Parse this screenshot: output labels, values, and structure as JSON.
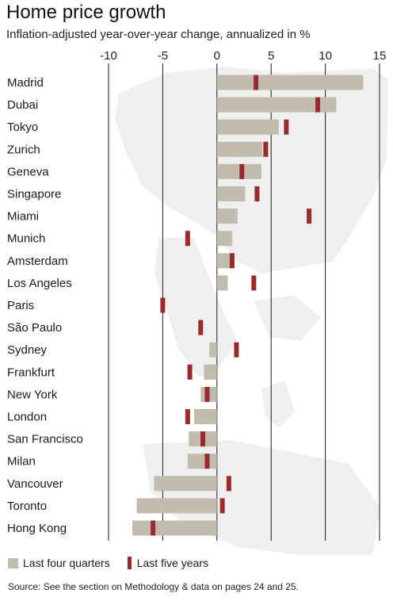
{
  "title": "Home price growth",
  "subtitle": "Inflation-adjusted year-over-year change, annualized in %",
  "legend": {
    "four_quarters": "Last four quarters",
    "five_years": "Last five years"
  },
  "source": "Source: See the section on Methodology & data on pages 24 and 25.",
  "colors": {
    "four_quarters": "#c2bcae",
    "five_years": "#9b2a2f",
    "gridline": "#1a1a1a",
    "map": "#efefef"
  },
  "chart_data": {
    "type": "bar",
    "orientation": "horizontal",
    "xlim": [
      -10,
      15
    ],
    "xticks": [
      "-10",
      "-5",
      "0",
      "5",
      "10",
      "15"
    ],
    "xtick_values": [
      -10,
      -5,
      0,
      5,
      10,
      15
    ],
    "grid": true,
    "legend_position": "bottom-left",
    "categories": [
      "Madrid",
      "Dubai",
      "Tokyo",
      "Zurich",
      "Geneva",
      "Singapore",
      "Miami",
      "Munich",
      "Amsterdam",
      "Los Angeles",
      "Paris",
      "São Paulo",
      "Sydney",
      "Frankfurt",
      "New York",
      "London",
      "San Francisco",
      "Milan",
      "Vancouver",
      "Toronto",
      "Hong Kong"
    ],
    "series": [
      {
        "name": "Last four quarters",
        "kind": "bar",
        "values": [
          13.5,
          11.0,
          5.7,
          4.2,
          4.1,
          2.6,
          1.9,
          1.4,
          1.3,
          1.0,
          0.0,
          0.0,
          -0.7,
          -1.2,
          -1.5,
          -2.1,
          -2.6,
          -2.7,
          -5.8,
          -7.4,
          -7.8
        ]
      },
      {
        "name": "Last five years",
        "kind": "marker",
        "values": [
          3.6,
          9.3,
          6.4,
          4.5,
          2.3,
          3.7,
          8.5,
          -2.7,
          1.4,
          3.4,
          -5.0,
          -1.5,
          1.8,
          -2.5,
          -0.9,
          -2.7,
          -1.3,
          -0.9,
          1.1,
          0.5,
          -5.9
        ]
      }
    ]
  }
}
